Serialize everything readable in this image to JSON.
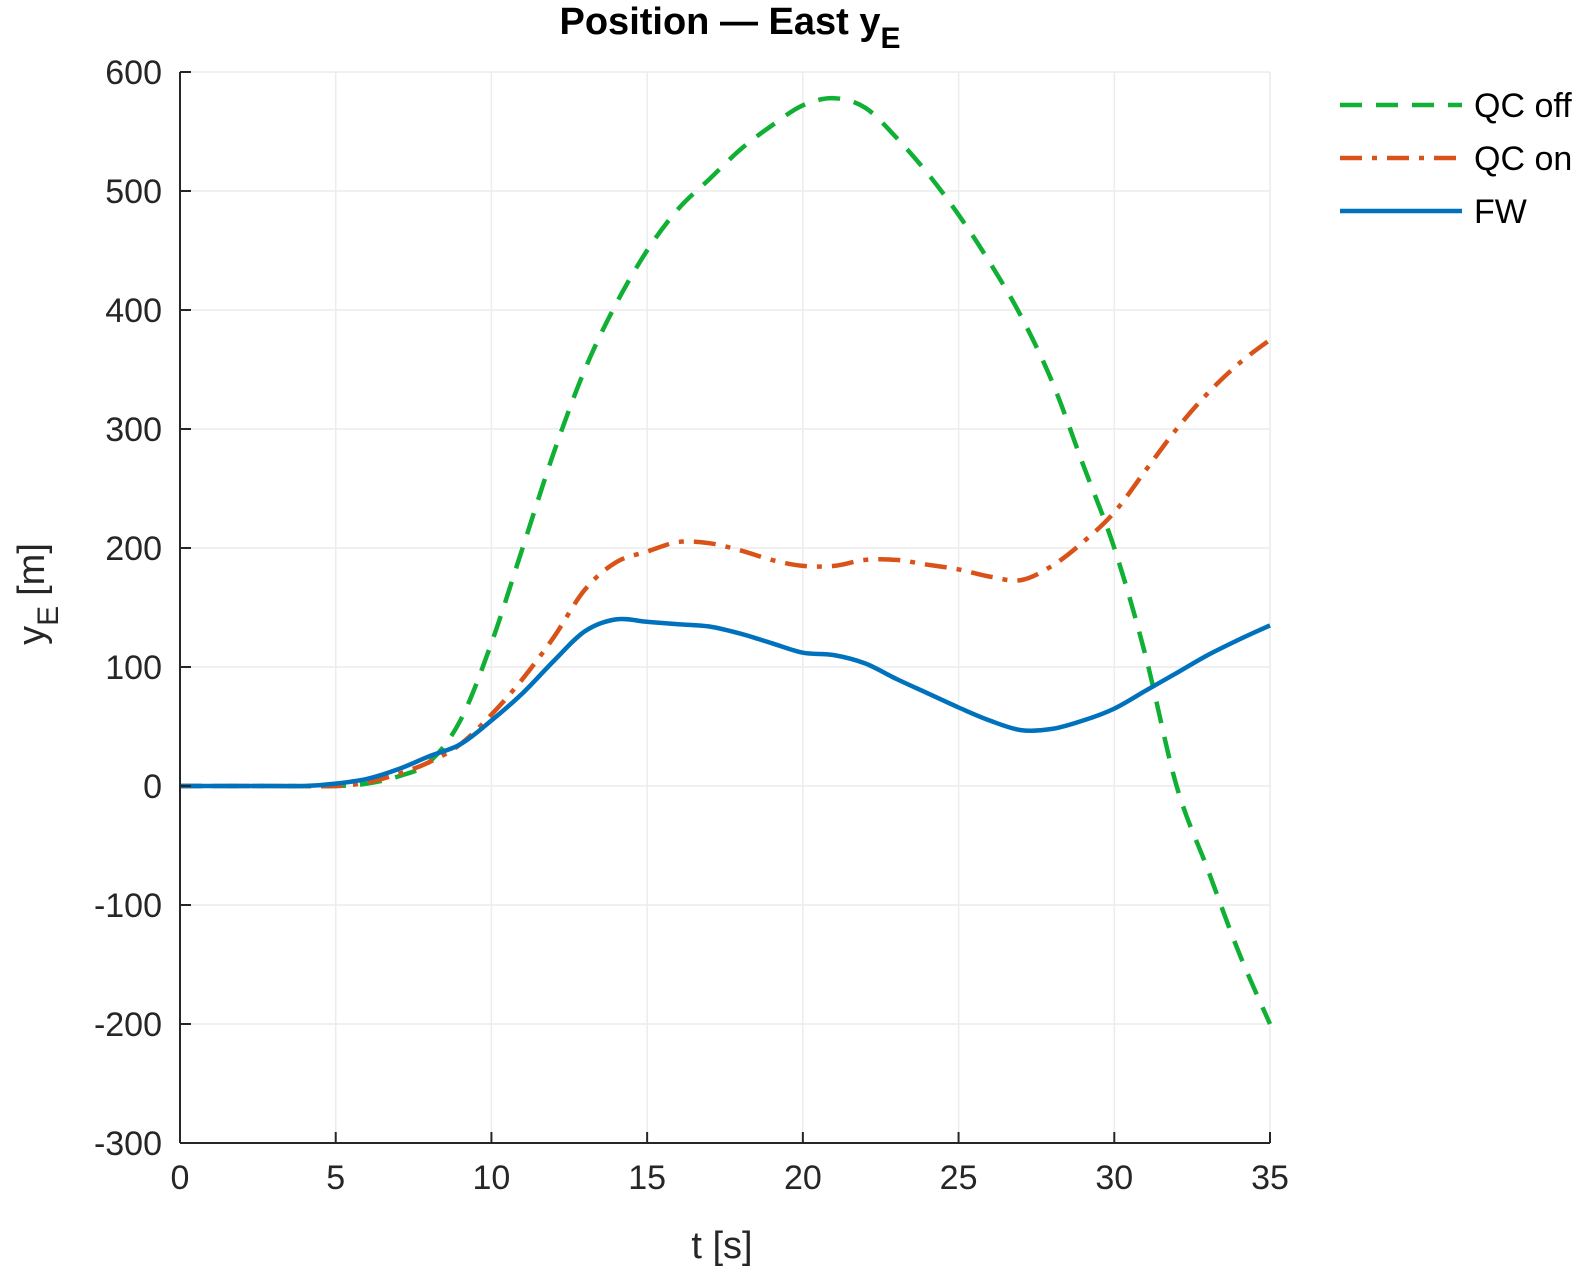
{
  "chart_data": {
    "type": "line",
    "title": "Position — East y",
    "title_subscript": "E",
    "xlabel": "t [s]",
    "ylabel": "y",
    "ylabel_subscript": "E",
    "ylabel_unit": "[m]",
    "xlim": [
      0,
      35
    ],
    "ylim": [
      -300,
      600
    ],
    "xticks": [
      0,
      5,
      10,
      15,
      20,
      25,
      30,
      35
    ],
    "yticks": [
      -300,
      -200,
      -100,
      0,
      100,
      200,
      300,
      400,
      500,
      600
    ],
    "xtick_labels": [
      "0",
      "5",
      "10",
      "15",
      "20",
      "25",
      "30",
      "35"
    ],
    "ytick_labels": [
      "-300",
      "-200",
      "-100",
      "0",
      "100",
      "200",
      "300",
      "400",
      "500",
      "600"
    ],
    "grid": true,
    "legend_position": "top-right-outside",
    "series": [
      {
        "name": "QC off",
        "color": "#0fb034",
        "style": "dashed",
        "x": [
          0,
          3,
          5,
          6,
          7,
          8,
          9,
          10,
          11,
          12,
          13,
          14,
          15,
          16,
          17,
          18,
          19,
          20,
          21,
          22,
          23,
          24,
          25,
          26,
          27,
          28,
          29,
          30,
          31,
          32,
          33,
          34,
          35
        ],
        "y": [
          0,
          0,
          0,
          2,
          8,
          20,
          55,
          120,
          200,
          280,
          350,
          405,
          450,
          485,
          510,
          535,
          555,
          572,
          578,
          570,
          545,
          515,
          480,
          440,
          395,
          340,
          270,
          200,
          110,
          0,
          -70,
          -140,
          -200
        ]
      },
      {
        "name": "QC on",
        "color": "#d95319",
        "style": "dashdot",
        "x": [
          0,
          3,
          5,
          6,
          7,
          8,
          9,
          10,
          11,
          12,
          13,
          14,
          15,
          16,
          17,
          18,
          19,
          20,
          21,
          22,
          23,
          24,
          25,
          26,
          27,
          28,
          29,
          30,
          31,
          32,
          33,
          34,
          35
        ],
        "y": [
          0,
          0,
          0,
          3,
          10,
          20,
          35,
          60,
          90,
          125,
          165,
          188,
          197,
          205,
          204,
          198,
          190,
          185,
          185,
          190,
          190,
          186,
          182,
          176,
          173,
          185,
          205,
          230,
          265,
          300,
          330,
          355,
          375
        ]
      },
      {
        "name": "FW",
        "color": "#0072bd",
        "style": "solid",
        "x": [
          0,
          3,
          4,
          5,
          6,
          7,
          8,
          9,
          10,
          11,
          12,
          13,
          14,
          15,
          16,
          17,
          18,
          19,
          20,
          21,
          22,
          23,
          24,
          25,
          26,
          27,
          28,
          29,
          30,
          31,
          32,
          33,
          34,
          35
        ],
        "y": [
          0,
          0,
          0,
          2,
          6,
          14,
          25,
          35,
          55,
          78,
          105,
          130,
          140,
          138,
          136,
          134,
          128,
          120,
          112,
          110,
          103,
          90,
          78,
          66,
          55,
          47,
          48,
          55,
          65,
          80,
          95,
          110,
          123,
          135
        ]
      }
    ]
  }
}
